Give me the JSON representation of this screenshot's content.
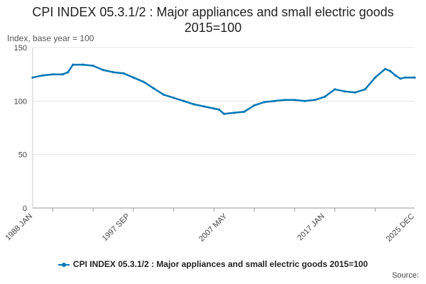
{
  "chart_data": {
    "type": "line",
    "title": "CPI INDEX 05.3.1/2 : Major appliances and small electric goods 2015=100",
    "ylabel": "Index, base year = 100",
    "xlabel": "",
    "ylim": [
      0,
      150
    ],
    "yticks": [
      0,
      50,
      100,
      150
    ],
    "x_start": 1988.0,
    "x_end": 2025.92,
    "xticks": [
      {
        "label": "1988 JAN",
        "value": 1988.0
      },
      {
        "label": "1997 SEP",
        "value": 1997.67
      },
      {
        "label": "2007 MAY",
        "value": 2007.33
      },
      {
        "label": "2017 JAN",
        "value": 2017.0
      },
      {
        "label": "2025 DEC",
        "value": 2025.92
      }
    ],
    "grid": true,
    "series": [
      {
        "name": "CPI INDEX 05.3.1/2 : Major appliances and small electric goods 2015=100",
        "color": "#0077b6",
        "x": [
          1988.0,
          1989.0,
          1990.0,
          1991.0,
          1991.5,
          1992.0,
          1993.0,
          1994.0,
          1995.0,
          1996.0,
          1997.0,
          1998.0,
          1999.0,
          2000.0,
          2001.0,
          2002.0,
          2003.0,
          2004.0,
          2005.0,
          2006.0,
          2006.5,
          2007.0,
          2008.0,
          2009.0,
          2010.0,
          2011.0,
          2012.0,
          2013.0,
          2014.0,
          2015.0,
          2016.0,
          2017.0,
          2018.0,
          2019.0,
          2020.0,
          2021.0,
          2022.0,
          2023.0,
          2023.5,
          2024.0,
          2024.5,
          2025.0,
          2025.92
        ],
        "values": [
          122,
          124,
          125,
          125,
          127,
          134,
          134,
          133,
          129,
          127,
          126,
          122,
          118,
          112,
          106,
          103,
          100,
          97,
          95,
          93,
          92,
          88,
          89,
          90,
          96,
          99,
          100,
          101,
          101,
          100,
          101,
          104,
          111,
          109,
          108,
          111,
          122,
          130,
          128,
          124,
          121,
          122,
          122
        ]
      }
    ]
  },
  "legend": {
    "label": "CPI INDEX 05.3.1/2 : Major appliances and small electric goods 2015=100"
  },
  "source": {
    "label": "Source:"
  }
}
